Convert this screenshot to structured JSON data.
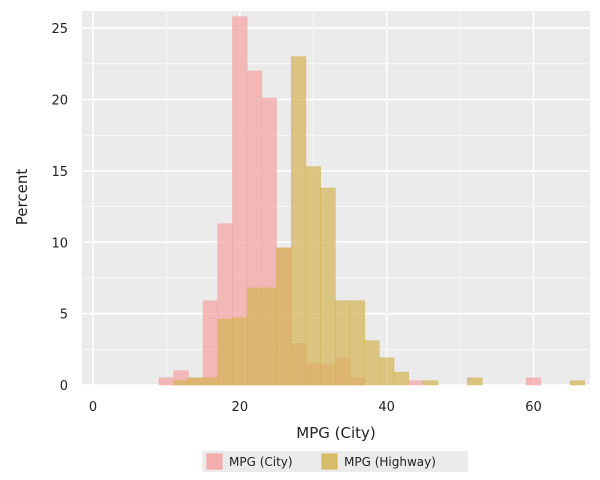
{
  "colors": {
    "panel": "#ebebeb",
    "grid": "#ffffff",
    "city": "#f4a3a3",
    "highway": "#d4b455",
    "overlap": "#d7a551",
    "legend_bg": "#ebebeb"
  },
  "chart_data": {
    "type": "histogram",
    "title": "",
    "xlabel": "MPG (City)",
    "ylabel": "Percent",
    "xlim": [
      -1.5,
      67.7
    ],
    "ylim": [
      0,
      26.2
    ],
    "xticks": [
      "0",
      "20",
      "40",
      "60"
    ],
    "yticks": [
      "0",
      "5",
      "10",
      "15",
      "20",
      "25"
    ],
    "grid": true,
    "bin_start": 9,
    "bin_width": 2,
    "legend_position": "bottom",
    "series": [
      {
        "name": "MPG (City)",
        "key": "city",
        "bins": [
          {
            "x0": 9,
            "x1": 11,
            "value": 0.5
          },
          {
            "x0": 11,
            "x1": 13,
            "value": 1.0
          },
          {
            "x0": 13,
            "x1": 15,
            "value": 0.5
          },
          {
            "x0": 15,
            "x1": 17,
            "value": 5.9
          },
          {
            "x0": 17,
            "x1": 19,
            "value": 11.3
          },
          {
            "x0": 19,
            "x1": 21,
            "value": 25.8
          },
          {
            "x0": 21,
            "x1": 23,
            "value": 22.0
          },
          {
            "x0": 23,
            "x1": 25,
            "value": 20.1
          },
          {
            "x0": 25,
            "x1": 27,
            "value": 9.6
          },
          {
            "x0": 27,
            "x1": 29,
            "value": 2.9
          },
          {
            "x0": 29,
            "x1": 31,
            "value": 1.5
          },
          {
            "x0": 31,
            "x1": 33,
            "value": 1.4
          },
          {
            "x0": 33,
            "x1": 35,
            "value": 1.9
          },
          {
            "x0": 35,
            "x1": 37,
            "value": 0.5
          },
          {
            "x0": 43,
            "x1": 45,
            "value": 0.3
          },
          {
            "x0": 59,
            "x1": 61,
            "value": 0.5
          }
        ]
      },
      {
        "name": "MPG (Highway)",
        "key": "highway",
        "bins": [
          {
            "x0": 11,
            "x1": 13,
            "value": 0.3
          },
          {
            "x0": 13,
            "x1": 15,
            "value": 0.5
          },
          {
            "x0": 15,
            "x1": 17,
            "value": 0.5
          },
          {
            "x0": 17,
            "x1": 19,
            "value": 4.6
          },
          {
            "x0": 19,
            "x1": 21,
            "value": 4.7
          },
          {
            "x0": 21,
            "x1": 23,
            "value": 6.8
          },
          {
            "x0": 23,
            "x1": 25,
            "value": 6.8
          },
          {
            "x0": 25,
            "x1": 27,
            "value": 9.6
          },
          {
            "x0": 27,
            "x1": 29,
            "value": 23.0
          },
          {
            "x0": 29,
            "x1": 31,
            "value": 15.3
          },
          {
            "x0": 31,
            "x1": 33,
            "value": 13.8
          },
          {
            "x0": 33,
            "x1": 35,
            "value": 5.9
          },
          {
            "x0": 35,
            "x1": 37,
            "value": 5.9
          },
          {
            "x0": 37,
            "x1": 39,
            "value": 3.1
          },
          {
            "x0": 39,
            "x1": 41,
            "value": 1.9
          },
          {
            "x0": 41,
            "x1": 43,
            "value": 0.9
          },
          {
            "x0": 45,
            "x1": 47,
            "value": 0.3
          },
          {
            "x0": 51,
            "x1": 53,
            "value": 0.5
          },
          {
            "x0": 65,
            "x1": 67,
            "value": 0.3
          }
        ]
      }
    ]
  }
}
